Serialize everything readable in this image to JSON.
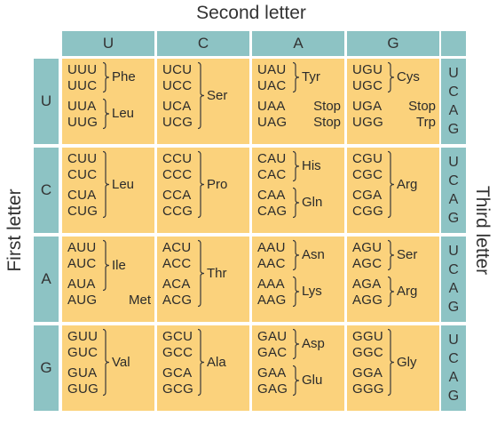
{
  "titles": {
    "second_letter": "Second letter",
    "first_letter": "First letter",
    "third_letter": "Third letter"
  },
  "columns": [
    "U",
    "C",
    "A",
    "G"
  ],
  "rows": [
    "U",
    "C",
    "A",
    "G"
  ],
  "third_letters": [
    "U",
    "C",
    "A",
    "G"
  ],
  "colors": {
    "header_teal": "#8dc3c4",
    "cell_yellow": "#fbd27c"
  },
  "cells": [
    {
      "codons": [
        "UUU",
        "UUC",
        "UUA",
        "UUG"
      ],
      "groups": [
        {
          "label": "Phe",
          "from": 0,
          "to": 1
        },
        {
          "label": "Leu",
          "from": 2,
          "to": 3
        }
      ]
    },
    {
      "codons": [
        "UCU",
        "UCC",
        "UCA",
        "UCG"
      ],
      "groups": [
        {
          "label": "Ser",
          "from": 0,
          "to": 3
        }
      ]
    },
    {
      "codons": [
        "UAU",
        "UAC",
        "UAA",
        "UAG"
      ],
      "groups": [
        {
          "label": "Tyr",
          "from": 0,
          "to": 1
        },
        {
          "label": "Stop",
          "from": 2,
          "to": 2
        },
        {
          "label": "Stop",
          "from": 3,
          "to": 3
        }
      ]
    },
    {
      "codons": [
        "UGU",
        "UGC",
        "UGA",
        "UGG"
      ],
      "groups": [
        {
          "label": "Cys",
          "from": 0,
          "to": 1
        },
        {
          "label": "Stop",
          "from": 2,
          "to": 2
        },
        {
          "label": "Trp",
          "from": 3,
          "to": 3
        }
      ]
    },
    {
      "codons": [
        "CUU",
        "CUC",
        "CUA",
        "CUG"
      ],
      "groups": [
        {
          "label": "Leu",
          "from": 0,
          "to": 3
        }
      ]
    },
    {
      "codons": [
        "CCU",
        "CCC",
        "CCA",
        "CCG"
      ],
      "groups": [
        {
          "label": "Pro",
          "from": 0,
          "to": 3
        }
      ]
    },
    {
      "codons": [
        "CAU",
        "CAC",
        "CAA",
        "CAG"
      ],
      "groups": [
        {
          "label": "His",
          "from": 0,
          "to": 1
        },
        {
          "label": "Gln",
          "from": 2,
          "to": 3
        }
      ]
    },
    {
      "codons": [
        "CGU",
        "CGC",
        "CGA",
        "CGG"
      ],
      "groups": [
        {
          "label": "Arg",
          "from": 0,
          "to": 3
        }
      ]
    },
    {
      "codons": [
        "AUU",
        "AUC",
        "AUA",
        "AUG"
      ],
      "groups": [
        {
          "label": "Ile",
          "from": 0,
          "to": 2
        },
        {
          "label": "Met",
          "from": 3,
          "to": 3
        }
      ]
    },
    {
      "codons": [
        "ACU",
        "ACC",
        "ACA",
        "ACG"
      ],
      "groups": [
        {
          "label": "Thr",
          "from": 0,
          "to": 3
        }
      ]
    },
    {
      "codons": [
        "AAU",
        "AAC",
        "AAA",
        "AAG"
      ],
      "groups": [
        {
          "label": "Asn",
          "from": 0,
          "to": 1
        },
        {
          "label": "Lys",
          "from": 2,
          "to": 3
        }
      ]
    },
    {
      "codons": [
        "AGU",
        "AGC",
        "AGA",
        "AGG"
      ],
      "groups": [
        {
          "label": "Ser",
          "from": 0,
          "to": 1
        },
        {
          "label": "Arg",
          "from": 2,
          "to": 3
        }
      ]
    },
    {
      "codons": [
        "GUU",
        "GUC",
        "GUA",
        "GUG"
      ],
      "groups": [
        {
          "label": "Val",
          "from": 0,
          "to": 3
        }
      ]
    },
    {
      "codons": [
        "GCU",
        "GCC",
        "GCA",
        "GCG"
      ],
      "groups": [
        {
          "label": "Ala",
          "from": 0,
          "to": 3
        }
      ]
    },
    {
      "codons": [
        "GAU",
        "GAC",
        "GAA",
        "GAG"
      ],
      "groups": [
        {
          "label": "Asp",
          "from": 0,
          "to": 1
        },
        {
          "label": "Glu",
          "from": 2,
          "to": 3
        }
      ]
    },
    {
      "codons": [
        "GGU",
        "GGC",
        "GGA",
        "GGG"
      ],
      "groups": [
        {
          "label": "Gly",
          "from": 0,
          "to": 3
        }
      ]
    }
  ]
}
